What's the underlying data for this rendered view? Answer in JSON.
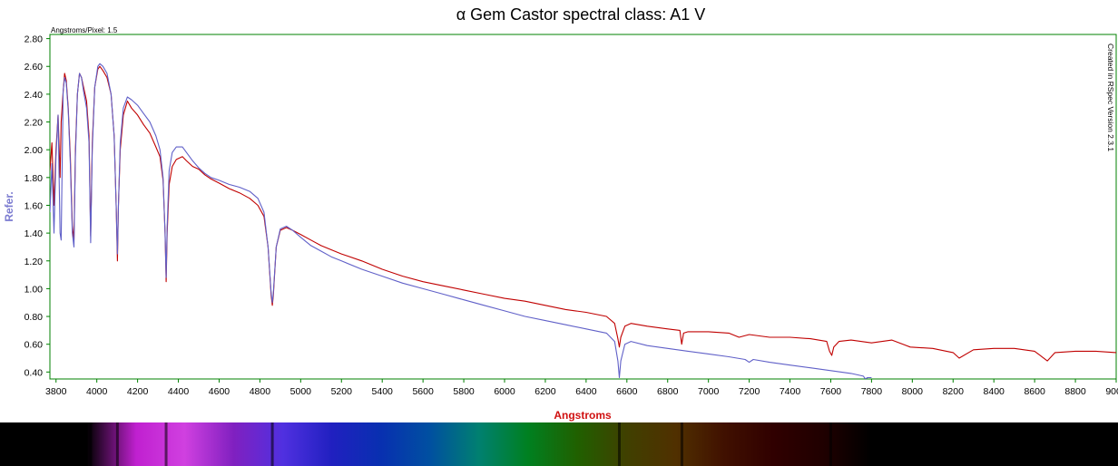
{
  "chart_data": {
    "type": "line",
    "title": "α Gem Castor spectral class: A1 V",
    "subtitle": "Angstroms/Pixel: 1.5",
    "side_note": "Created in RSpec Version 2.3.1",
    "xlabel": "Angstroms",
    "ylabel": "Refer.",
    "xlim": [
      3770,
      9000
    ],
    "ylim": [
      0.35,
      2.83
    ],
    "x_ticks": [
      3800,
      4000,
      4200,
      4400,
      4600,
      4800,
      5000,
      5200,
      5400,
      5600,
      5800,
      6000,
      6200,
      6400,
      6600,
      6800,
      7000,
      7200,
      7400,
      7600,
      7800,
      8000,
      8200,
      8400,
      8600,
      8800,
      9000
    ],
    "y_ticks": [
      0.4,
      0.6,
      0.8,
      1.0,
      1.2,
      1.4,
      1.6,
      1.8,
      2.0,
      2.2,
      2.4,
      2.6,
      2.8
    ],
    "grid": false,
    "series": [
      {
        "color": "#c00000",
        "points": [
          [
            3770,
            1.85
          ],
          [
            3780,
            2.05
          ],
          [
            3790,
            1.6
          ],
          [
            3800,
            2.0
          ],
          [
            3810,
            2.25
          ],
          [
            3820,
            1.8
          ],
          [
            3825,
            2.2
          ],
          [
            3835,
            2.42
          ],
          [
            3842,
            2.55
          ],
          [
            3850,
            2.5
          ],
          [
            3860,
            2.3
          ],
          [
            3870,
            1.95
          ],
          [
            3880,
            1.45
          ],
          [
            3888,
            1.35
          ],
          [
            3895,
            2.0
          ],
          [
            3905,
            2.4
          ],
          [
            3915,
            2.55
          ],
          [
            3925,
            2.52
          ],
          [
            3935,
            2.45
          ],
          [
            3950,
            2.35
          ],
          [
            3962,
            2.1
          ],
          [
            3970,
            1.38
          ],
          [
            3978,
            2.05
          ],
          [
            3990,
            2.45
          ],
          [
            4005,
            2.58
          ],
          [
            4015,
            2.6
          ],
          [
            4030,
            2.57
          ],
          [
            4050,
            2.52
          ],
          [
            4070,
            2.4
          ],
          [
            4085,
            2.1
          ],
          [
            4095,
            1.6
          ],
          [
            4101,
            1.2
          ],
          [
            4106,
            1.6
          ],
          [
            4115,
            2.0
          ],
          [
            4130,
            2.25
          ],
          [
            4150,
            2.35
          ],
          [
            4170,
            2.3
          ],
          [
            4200,
            2.25
          ],
          [
            4230,
            2.18
          ],
          [
            4260,
            2.12
          ],
          [
            4290,
            2.02
          ],
          [
            4310,
            1.95
          ],
          [
            4325,
            1.78
          ],
          [
            4335,
            1.4
          ],
          [
            4340,
            1.05
          ],
          [
            4345,
            1.4
          ],
          [
            4355,
            1.75
          ],
          [
            4370,
            1.88
          ],
          [
            4390,
            1.93
          ],
          [
            4420,
            1.95
          ],
          [
            4440,
            1.92
          ],
          [
            4470,
            1.88
          ],
          [
            4500,
            1.86
          ],
          [
            4530,
            1.82
          ],
          [
            4560,
            1.79
          ],
          [
            4600,
            1.76
          ],
          [
            4650,
            1.72
          ],
          [
            4700,
            1.69
          ],
          [
            4750,
            1.65
          ],
          [
            4790,
            1.6
          ],
          [
            4820,
            1.52
          ],
          [
            4840,
            1.3
          ],
          [
            4855,
            0.95
          ],
          [
            4861,
            0.88
          ],
          [
            4866,
            0.95
          ],
          [
            4880,
            1.3
          ],
          [
            4900,
            1.42
          ],
          [
            4930,
            1.44
          ],
          [
            4960,
            1.42
          ],
          [
            5000,
            1.39
          ],
          [
            5050,
            1.35
          ],
          [
            5100,
            1.31
          ],
          [
            5150,
            1.28
          ],
          [
            5200,
            1.25
          ],
          [
            5300,
            1.2
          ],
          [
            5400,
            1.14
          ],
          [
            5500,
            1.09
          ],
          [
            5600,
            1.05
          ],
          [
            5700,
            1.02
          ],
          [
            5800,
            0.99
          ],
          [
            5900,
            0.96
          ],
          [
            6000,
            0.93
          ],
          [
            6100,
            0.91
          ],
          [
            6200,
            0.88
          ],
          [
            6300,
            0.85
          ],
          [
            6400,
            0.83
          ],
          [
            6500,
            0.8
          ],
          [
            6540,
            0.75
          ],
          [
            6556,
            0.64
          ],
          [
            6563,
            0.58
          ],
          [
            6570,
            0.65
          ],
          [
            6590,
            0.73
          ],
          [
            6620,
            0.75
          ],
          [
            6700,
            0.73
          ],
          [
            6800,
            0.71
          ],
          [
            6860,
            0.7
          ],
          [
            6869,
            0.6
          ],
          [
            6878,
            0.68
          ],
          [
            6900,
            0.69
          ],
          [
            7000,
            0.69
          ],
          [
            7100,
            0.68
          ],
          [
            7150,
            0.65
          ],
          [
            7200,
            0.67
          ],
          [
            7250,
            0.66
          ],
          [
            7300,
            0.65
          ],
          [
            7400,
            0.65
          ],
          [
            7500,
            0.64
          ],
          [
            7580,
            0.62
          ],
          [
            7594,
            0.55
          ],
          [
            7605,
            0.52
          ],
          [
            7615,
            0.58
          ],
          [
            7640,
            0.62
          ],
          [
            7700,
            0.63
          ],
          [
            7800,
            0.61
          ],
          [
            7900,
            0.63
          ],
          [
            7990,
            0.58
          ],
          [
            8100,
            0.57
          ],
          [
            8200,
            0.54
          ],
          [
            8230,
            0.5
          ],
          [
            8300,
            0.56
          ],
          [
            8400,
            0.57
          ],
          [
            8500,
            0.57
          ],
          [
            8600,
            0.55
          ],
          [
            8662,
            0.48
          ],
          [
            8700,
            0.54
          ],
          [
            8800,
            0.55
          ],
          [
            8900,
            0.55
          ],
          [
            9000,
            0.54
          ]
        ]
      },
      {
        "color": "#6060c8",
        "points": [
          [
            3770,
            1.55
          ],
          [
            3780,
            1.9
          ],
          [
            3790,
            1.4
          ],
          [
            3800,
            1.95
          ],
          [
            3810,
            2.25
          ],
          [
            3820,
            1.4
          ],
          [
            3825,
            1.35
          ],
          [
            3835,
            2.42
          ],
          [
            3842,
            2.52
          ],
          [
            3850,
            2.48
          ],
          [
            3860,
            2.28
          ],
          [
            3870,
            1.9
          ],
          [
            3880,
            1.4
          ],
          [
            3888,
            1.3
          ],
          [
            3895,
            1.95
          ],
          [
            3905,
            2.4
          ],
          [
            3915,
            2.55
          ],
          [
            3925,
            2.52
          ],
          [
            3935,
            2.42
          ],
          [
            3950,
            2.3
          ],
          [
            3962,
            2.05
          ],
          [
            3970,
            1.33
          ],
          [
            3978,
            2.0
          ],
          [
            3990,
            2.45
          ],
          [
            4005,
            2.6
          ],
          [
            4015,
            2.62
          ],
          [
            4030,
            2.6
          ],
          [
            4050,
            2.55
          ],
          [
            4070,
            2.4
          ],
          [
            4085,
            2.1
          ],
          [
            4095,
            1.6
          ],
          [
            4101,
            1.25
          ],
          [
            4106,
            1.6
          ],
          [
            4115,
            2.05
          ],
          [
            4130,
            2.3
          ],
          [
            4150,
            2.38
          ],
          [
            4170,
            2.36
          ],
          [
            4200,
            2.32
          ],
          [
            4230,
            2.26
          ],
          [
            4260,
            2.2
          ],
          [
            4290,
            2.1
          ],
          [
            4310,
            2.0
          ],
          [
            4325,
            1.8
          ],
          [
            4335,
            1.4
          ],
          [
            4340,
            1.08
          ],
          [
            4345,
            1.45
          ],
          [
            4355,
            1.85
          ],
          [
            4370,
            1.98
          ],
          [
            4390,
            2.02
          ],
          [
            4420,
            2.02
          ],
          [
            4440,
            1.98
          ],
          [
            4470,
            1.92
          ],
          [
            4500,
            1.87
          ],
          [
            4530,
            1.83
          ],
          [
            4560,
            1.8
          ],
          [
            4600,
            1.78
          ],
          [
            4650,
            1.75
          ],
          [
            4700,
            1.73
          ],
          [
            4750,
            1.7
          ],
          [
            4790,
            1.65
          ],
          [
            4820,
            1.55
          ],
          [
            4840,
            1.3
          ],
          [
            4855,
            0.97
          ],
          [
            4861,
            0.9
          ],
          [
            4866,
            0.97
          ],
          [
            4880,
            1.3
          ],
          [
            4900,
            1.43
          ],
          [
            4930,
            1.45
          ],
          [
            4960,
            1.42
          ],
          [
            5000,
            1.37
          ],
          [
            5050,
            1.31
          ],
          [
            5100,
            1.27
          ],
          [
            5150,
            1.23
          ],
          [
            5200,
            1.2
          ],
          [
            5300,
            1.14
          ],
          [
            5400,
            1.09
          ],
          [
            5500,
            1.04
          ],
          [
            5600,
            1.0
          ],
          [
            5700,
            0.96
          ],
          [
            5800,
            0.92
          ],
          [
            5900,
            0.88
          ],
          [
            6000,
            0.84
          ],
          [
            6100,
            0.8
          ],
          [
            6200,
            0.77
          ],
          [
            6300,
            0.74
          ],
          [
            6400,
            0.71
          ],
          [
            6500,
            0.68
          ],
          [
            6540,
            0.62
          ],
          [
            6556,
            0.48
          ],
          [
            6563,
            0.36
          ],
          [
            6570,
            0.48
          ],
          [
            6590,
            0.6
          ],
          [
            6620,
            0.62
          ],
          [
            6700,
            0.59
          ],
          [
            6800,
            0.57
          ],
          [
            6900,
            0.55
          ],
          [
            7000,
            0.53
          ],
          [
            7100,
            0.51
          ],
          [
            7180,
            0.49
          ],
          [
            7200,
            0.47
          ],
          [
            7220,
            0.49
          ],
          [
            7300,
            0.47
          ],
          [
            7400,
            0.45
          ],
          [
            7500,
            0.43
          ],
          [
            7600,
            0.41
          ],
          [
            7700,
            0.39
          ],
          [
            7760,
            0.37
          ],
          [
            7770,
            0.35
          ],
          [
            7780,
            0.36
          ],
          [
            7800,
            0.36
          ]
        ]
      }
    ]
  },
  "spectrum_strip": {
    "colors": [
      "#000000",
      "#000000",
      "#c020d0",
      "#d040e0",
      "#8020c0",
      "#5030e0",
      "#2020c0",
      "#0830b0",
      "#0050a0",
      "#008070",
      "#008020",
      "#206000",
      "#404000",
      "#503000",
      "#401000",
      "#300000",
      "#200000",
      "#000000"
    ],
    "lines_angstrom": [
      3835,
      3889,
      3970,
      4101,
      4340,
      4861,
      6563,
      6870,
      7600
    ]
  }
}
